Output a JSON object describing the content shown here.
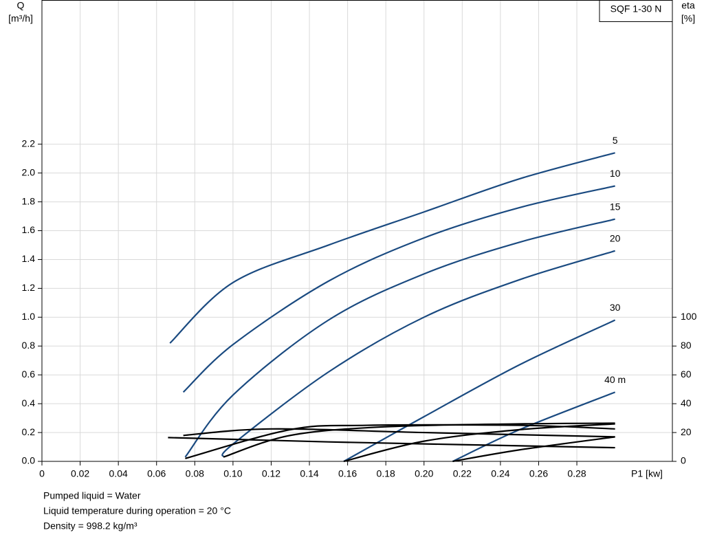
{
  "chart_data": {
    "type": "line",
    "title": "SQF 1-30 N",
    "y_label": [
      "Q",
      "[m³/h]"
    ],
    "y2_label": [
      "eta",
      "[%]"
    ],
    "x_label": "P1 [kw]",
    "notes": [
      "Pumped liquid = Water",
      "Liquid temperature during operation = 20 °C",
      "Density = 998.2 kg/m³"
    ],
    "xlim": [
      0,
      0.33
    ],
    "ylim": [
      0,
      3.2
    ],
    "y2lim": [
      0,
      320
    ],
    "grid": true,
    "xticks": [
      0,
      0.02,
      0.04,
      0.06,
      0.08,
      {
        "value": 0.1,
        "label": "0.10"
      },
      0.12,
      0.14,
      0.16,
      0.18,
      {
        "value": 0.2,
        "label": "0.20"
      },
      0.22,
      0.24,
      0.26,
      0.28
    ],
    "yticks": [
      {
        "value": 0,
        "label": "0.0"
      },
      0.2,
      0.4,
      0.6,
      0.8,
      {
        "value": 1,
        "label": "1.0"
      },
      1.2,
      1.4,
      1.6,
      1.8,
      {
        "value": 2,
        "label": "2.0"
      },
      2.2
    ],
    "y2ticks": [
      0,
      20,
      40,
      60,
      80,
      100
    ],
    "series": [
      {
        "name": "5",
        "color": "#1a4a80",
        "x": [
          0.067,
          0.1,
          0.15,
          0.2,
          0.25,
          0.3
        ],
        "values": [
          0.82,
          1.24,
          1.5,
          1.73,
          1.96,
          2.14
        ]
      },
      {
        "name": "10",
        "color": "#1a4a80",
        "x": [
          0.074,
          0.1,
          0.15,
          0.2,
          0.25,
          0.3
        ],
        "values": [
          0.48,
          0.81,
          1.25,
          1.55,
          1.76,
          1.91
        ]
      },
      {
        "name": "15",
        "color": "#1a4a80",
        "x": [
          0.075,
          0.1,
          0.15,
          0.2,
          0.25,
          0.3
        ],
        "values": [
          0.03,
          0.46,
          0.98,
          1.3,
          1.52,
          1.68
        ]
      },
      {
        "name": "20",
        "color": "#1a4a80",
        "x": [
          0.095,
          0.1,
          0.15,
          0.2,
          0.25,
          0.3
        ],
        "values": [
          0.03,
          0.12,
          0.62,
          1.0,
          1.26,
          1.46
        ]
      },
      {
        "name": "30",
        "color": "#1a4a80",
        "x": [
          0.158,
          0.2,
          0.25,
          0.3
        ],
        "values": [
          0.0,
          0.31,
          0.67,
          0.98
        ]
      },
      {
        "name": "40 m",
        "color": "#1a4a80",
        "x": [
          0.215,
          0.25,
          0.3
        ],
        "values": [
          0.0,
          0.22,
          0.48
        ]
      },
      {
        "color": "#000000",
        "axis": "y2",
        "x": [
          0.066,
          0.15,
          0.3
        ],
        "values": [
          16.5,
          13.5,
          9.5
        ]
      },
      {
        "color": "#000000",
        "axis": "y2",
        "x": [
          0.074,
          0.12,
          0.2,
          0.3
        ],
        "values": [
          18,
          22.5,
          20,
          17
        ]
      },
      {
        "color": "#000000",
        "axis": "y2",
        "x": [
          0.075,
          0.13,
          0.17,
          0.25,
          0.3
        ],
        "values": [
          2,
          22,
          25,
          25,
          22.5
        ]
      },
      {
        "color": "#000000",
        "axis": "y2",
        "x": [
          0.095,
          0.13,
          0.18,
          0.25,
          0.3
        ],
        "values": [
          3,
          18,
          24,
          26,
          26.5
        ]
      },
      {
        "color": "#000000",
        "axis": "y2",
        "x": [
          0.158,
          0.2,
          0.25,
          0.3
        ],
        "values": [
          0,
          14,
          22,
          26
        ]
      },
      {
        "color": "#000000",
        "axis": "y2",
        "x": [
          0.215,
          0.25,
          0.3
        ],
        "values": [
          0,
          8,
          17
        ]
      }
    ]
  }
}
